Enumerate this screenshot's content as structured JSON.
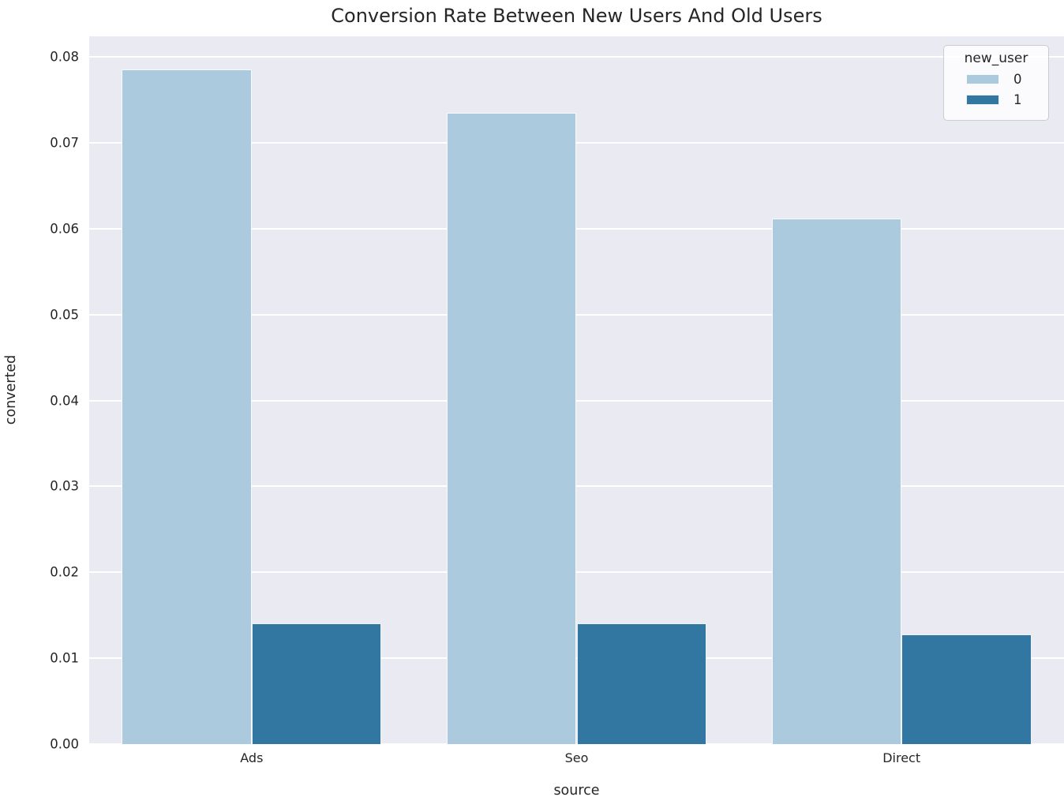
{
  "figure": {
    "background": "#ffffff",
    "plot_background": "#eaeaf2",
    "gridline_color": "#ffffff",
    "text_color": "#262626"
  },
  "chart_data": {
    "type": "bar",
    "title": "Conversion Rate Between New Users And Old Users",
    "xlabel": "source",
    "ylabel": "converted",
    "categories": [
      "Ads",
      "Seo",
      "Direct"
    ],
    "series": [
      {
        "name": "0",
        "color": "#accade",
        "values": [
          0.0785,
          0.0735,
          0.0612
        ]
      },
      {
        "name": "1",
        "color": "#3276a2",
        "values": [
          0.0141,
          0.0141,
          0.0128
        ]
      }
    ],
    "ylim": [
      0,
      0.0824
    ],
    "yticks": [
      0.0,
      0.01,
      0.02,
      0.03,
      0.04,
      0.05,
      0.06,
      0.07,
      0.08
    ],
    "ytick_labels": [
      "0.00",
      "0.01",
      "0.02",
      "0.03",
      "0.04",
      "0.05",
      "0.06",
      "0.07",
      "0.08"
    ],
    "grid": true,
    "bar_group_fraction": 0.8,
    "legend": {
      "title": "new_user",
      "position": "upper right",
      "entries": [
        "0",
        "1"
      ]
    }
  }
}
